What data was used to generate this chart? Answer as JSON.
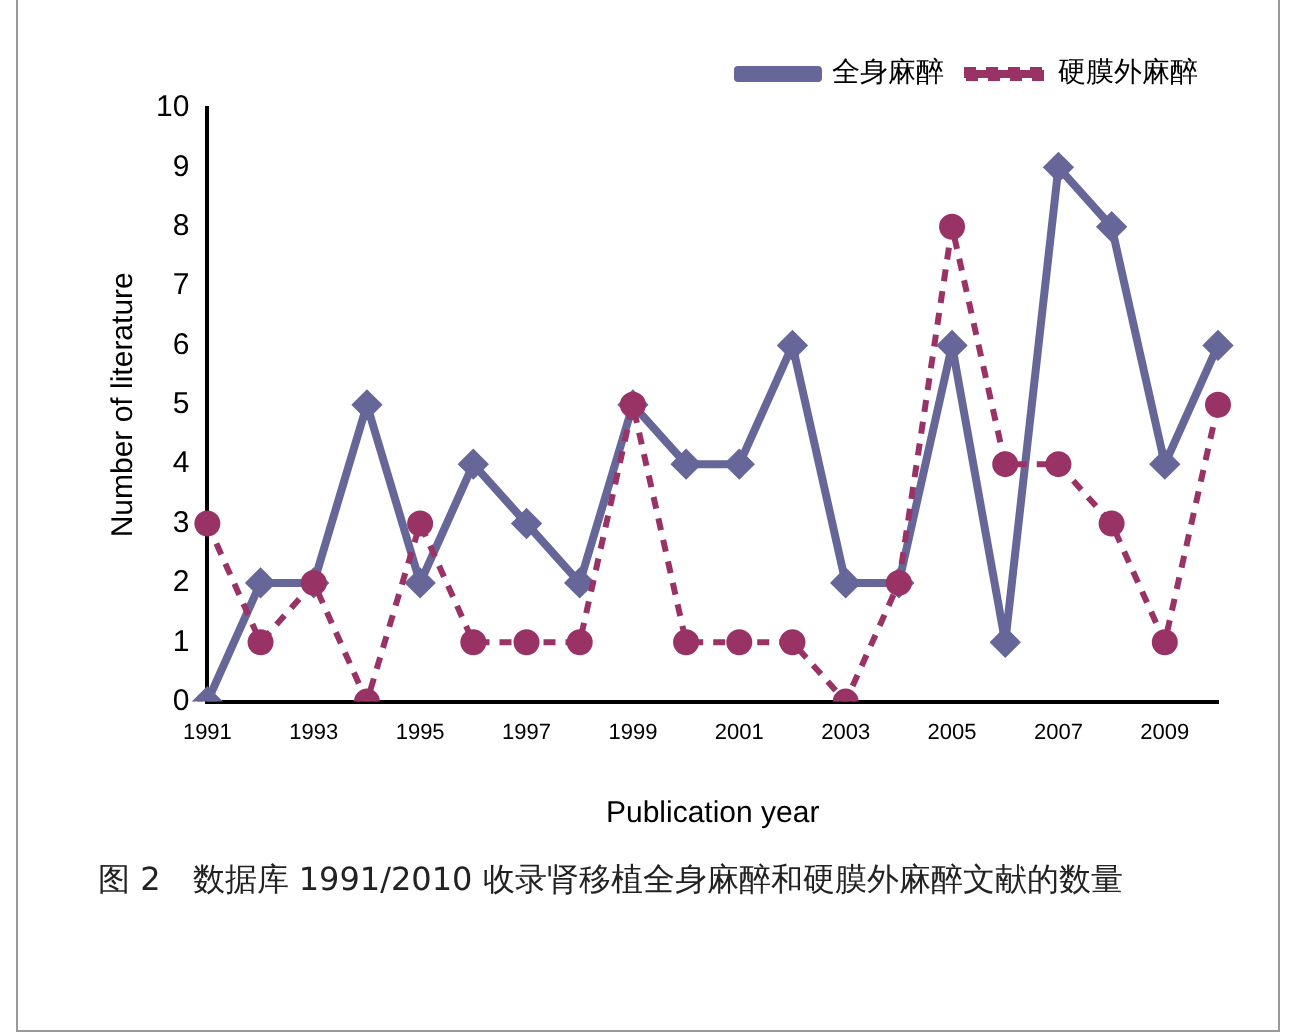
{
  "chart_data": {
    "type": "line",
    "xlabel": "Publication year",
    "ylabel": "Number of literature",
    "categories": [
      "1991",
      null,
      "1993",
      null,
      "1995",
      null,
      "1997",
      null,
      "1999",
      null,
      "2001",
      null,
      "2003",
      null,
      "2005",
      null,
      "2007",
      null,
      "2009",
      null
    ],
    "series": [
      {
        "name": "全身麻醉",
        "color": "#666699",
        "marker": "diamond",
        "line_style": "solid",
        "values": [
          0,
          2,
          2,
          5,
          2,
          4,
          3,
          2,
          5,
          4,
          4,
          6,
          2,
          2,
          6,
          1,
          9,
          8,
          4,
          6
        ]
      },
      {
        "name": "硬膜外麻醉",
        "color": "#993366",
        "marker": "circle",
        "line_style": "dashed",
        "values": [
          3,
          1,
          2,
          0,
          3,
          1,
          1,
          1,
          5,
          1,
          1,
          1,
          0,
          2,
          8,
          4,
          4,
          3,
          1,
          5
        ]
      }
    ],
    "ylim": [
      0,
      10
    ],
    "yticks": [
      0,
      1,
      2,
      3,
      4,
      5,
      6,
      7,
      8,
      9,
      10
    ],
    "grid": false,
    "legend": "top right",
    "annotations": [
      "图 2　数据库 1991/2010 收录肾移植全身麻醉和硬膜外麻醉文献的数量"
    ]
  }
}
